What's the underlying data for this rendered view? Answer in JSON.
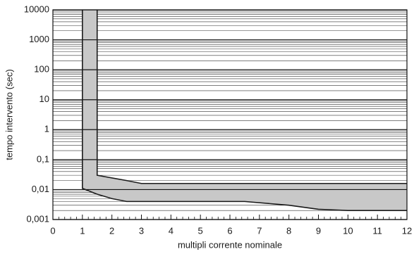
{
  "chart_data": {
    "type": "band",
    "y_label": "tempo intervento (sec)",
    "x_label": "multipli corrente nominale",
    "log_y": true,
    "grid": true,
    "minor_grid": true,
    "fill_color": "#c8c8c8",
    "line_color": "#1a1a1a",
    "xlim": [
      0,
      12
    ],
    "xticks": [
      0,
      1,
      2,
      3,
      4,
      5,
      6,
      7,
      8,
      9,
      10,
      11,
      12
    ],
    "ylim": [
      0.001,
      10000
    ],
    "yticks": [
      {
        "value": 0.001,
        "label": "0,001"
      },
      {
        "value": 0.01,
        "label": "0,01"
      },
      {
        "value": 0.1,
        "label": "0,1"
      },
      1,
      10,
      100,
      1000,
      10000
    ],
    "series": [
      {
        "x": [
          1.5,
          1.5,
          2.5,
          3,
          12
        ],
        "values": [
          10000,
          0.03,
          0.02,
          0.016,
          0.016
        ]
      },
      {
        "x": [
          1,
          1,
          1.5,
          2,
          2.5,
          6.5,
          8,
          9,
          10,
          12
        ],
        "values": [
          10000,
          0.011,
          0.007,
          0.005,
          0.004,
          0.004,
          0.003,
          0.0022,
          0.002,
          0.002
        ]
      }
    ]
  }
}
